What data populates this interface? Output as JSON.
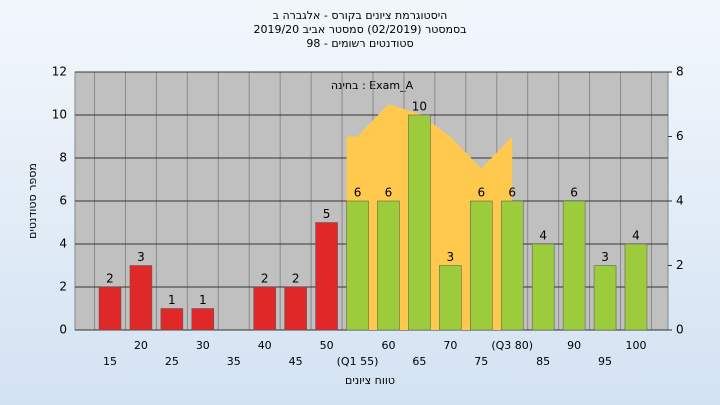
{
  "chart_data": {
    "type": "bar",
    "title": "היסטוגרמת ציונים בקורס - אלגברה ב",
    "subtitle": "בסמסטר  (02/2019)  סמסטר אביב 2019/20",
    "subtitle2": "סטודנטים רשומים - 98",
    "annotation": "בחינה : Exam_A",
    "x_label": "טווח ציונים",
    "y_label": "מספר סטודנטים",
    "categories": [
      "15",
      "20",
      "25",
      "30",
      "35",
      "40",
      "45",
      "50",
      "(Q1 55)",
      "60",
      "65",
      "70",
      "75",
      "(Q3 80)",
      "85",
      "90",
      "95",
      "100"
    ],
    "values": [
      2,
      3,
      1,
      1,
      null,
      2,
      2,
      5,
      6,
      6,
      10,
      3,
      6,
      6,
      4,
      6,
      3,
      4
    ],
    "colors": [
      "#e02828",
      "#e02828",
      "#e02828",
      "#e02828",
      null,
      "#e02828",
      "#e02828",
      "#e02828",
      "#9ccc3c",
      "#9ccc3c",
      "#9ccc3c",
      "#9ccc3c",
      "#9ccc3c",
      "#9ccc3c",
      "#9ccc3c",
      "#9ccc3c",
      "#9ccc3c",
      "#9ccc3c"
    ],
    "area": {
      "color": "#ffc94d",
      "axis": "y2",
      "values": [
        null,
        null,
        null,
        null,
        null,
        null,
        null,
        null,
        6,
        7,
        6.7,
        6,
        5,
        6,
        null,
        null,
        null,
        null
      ]
    },
    "ylim": [
      0,
      12
    ],
    "yticks": [
      0,
      2,
      4,
      6,
      8,
      10,
      12
    ],
    "y2lim": [
      0,
      8
    ],
    "y2ticks": [
      0,
      2,
      4,
      6,
      8
    ],
    "grid": true
  }
}
